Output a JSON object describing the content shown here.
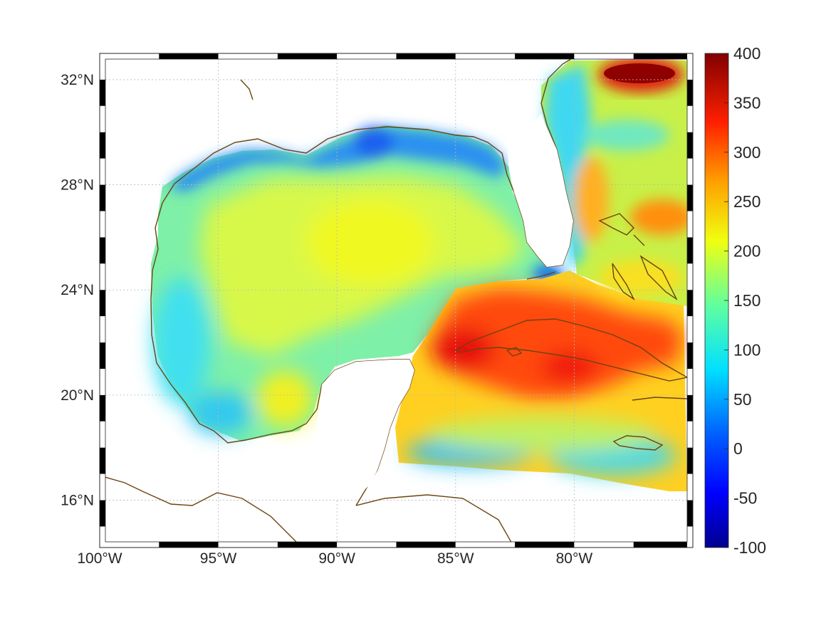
{
  "map": {
    "lon_range": [
      -100,
      -75
    ],
    "lat_range": [
      14.2,
      33
    ],
    "lon_ticks": [
      {
        "lon": -100,
        "label": "100°W"
      },
      {
        "lon": -95,
        "label": "95°W"
      },
      {
        "lon": -90,
        "label": "90°W"
      },
      {
        "lon": -85,
        "label": "85°W"
      },
      {
        "lon": -80,
        "label": "80°W"
      }
    ],
    "lat_ticks": [
      {
        "lat": 32,
        "label": "32°N"
      },
      {
        "lat": 28,
        "label": "28°N"
      },
      {
        "lat": 24,
        "label": "24°N"
      },
      {
        "lat": 20,
        "label": "20°N"
      },
      {
        "lat": 16,
        "label": "16°N"
      }
    ],
    "grid": "dotted",
    "coastline_color": "#6b4410",
    "frame_style": "black-white alternating border",
    "colormap": "jet"
  },
  "colorbar": {
    "min": -100,
    "max": 400,
    "ticks": [
      {
        "value": 400,
        "label": "400"
      },
      {
        "value": 350,
        "label": "350"
      },
      {
        "value": 300,
        "label": "300"
      },
      {
        "value": 250,
        "label": "250"
      },
      {
        "value": 200,
        "label": "200"
      },
      {
        "value": 150,
        "label": "150"
      },
      {
        "value": 100,
        "label": "100"
      },
      {
        "value": 50,
        "label": "50"
      },
      {
        "value": 0,
        "label": "0"
      },
      {
        "value": -50,
        "label": "-50"
      },
      {
        "value": -100,
        "label": "-100"
      }
    ],
    "colors": [
      "#00008f",
      "#0000ff",
      "#0080ff",
      "#00ffff",
      "#80ff80",
      "#ffff00",
      "#ff8000",
      "#ff0000",
      "#800000"
    ]
  }
}
